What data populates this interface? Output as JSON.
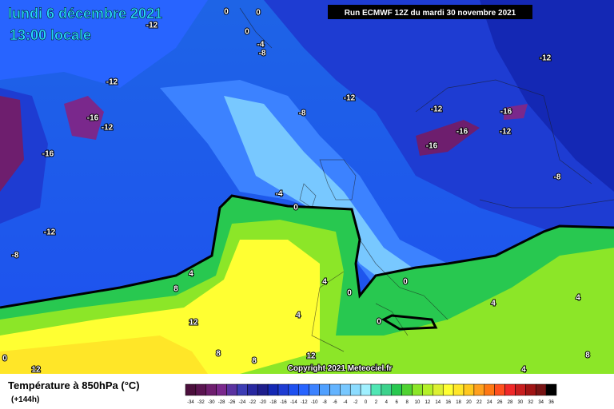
{
  "header": {
    "date": "lundi 6 décembre 2021",
    "time": "13:00 locale",
    "run": "Run ECMWF 12Z du mardi 30 novembre 2021",
    "copyright": "Copyright 2021 Meteociel.fr"
  },
  "legend": {
    "title": "Température à 850hPa (°C)",
    "lead": "(+144h)",
    "values": [
      -34,
      -32,
      -30,
      -28,
      -26,
      -24,
      -22,
      -20,
      -18,
      -16,
      -14,
      -12,
      -10,
      -8,
      -6,
      -4,
      -2,
      0,
      2,
      4,
      6,
      8,
      10,
      12,
      14,
      16,
      18,
      20,
      22,
      24,
      26,
      28,
      30,
      32,
      34,
      36
    ],
    "colors": [
      "#4b0f3c",
      "#5a1450",
      "#6e1e6e",
      "#7a288c",
      "#5a32a0",
      "#3c3cb4",
      "#2828a0",
      "#1e1e8c",
      "#1428b4",
      "#1e3cd2",
      "#1e50f0",
      "#2864ff",
      "#3c82ff",
      "#50a0ff",
      "#64b4ff",
      "#78c8ff",
      "#8cdcff",
      "#a0f0ff",
      "#50e6b4",
      "#3cd28c",
      "#28c850",
      "#50d232",
      "#8ce628",
      "#b4f028",
      "#dcf032",
      "#ffff32",
      "#ffe628",
      "#ffc81e",
      "#ffa01e",
      "#ff7814",
      "#ff501e",
      "#f02828",
      "#c81e1e",
      "#a01414",
      "#781414",
      "#000000"
    ]
  },
  "map": {
    "contour_labels": [
      -12,
      0,
      0,
      0,
      -4,
      -8,
      -12,
      -12,
      -12,
      -8,
      -12,
      -16,
      -16,
      -12,
      -16,
      -12,
      -16,
      -16,
      -8,
      -4,
      0,
      -12,
      -8,
      4,
      8,
      4,
      0,
      0,
      4,
      4,
      4,
      0,
      12,
      8,
      12,
      4,
      8,
      0,
      12,
      8
    ]
  }
}
